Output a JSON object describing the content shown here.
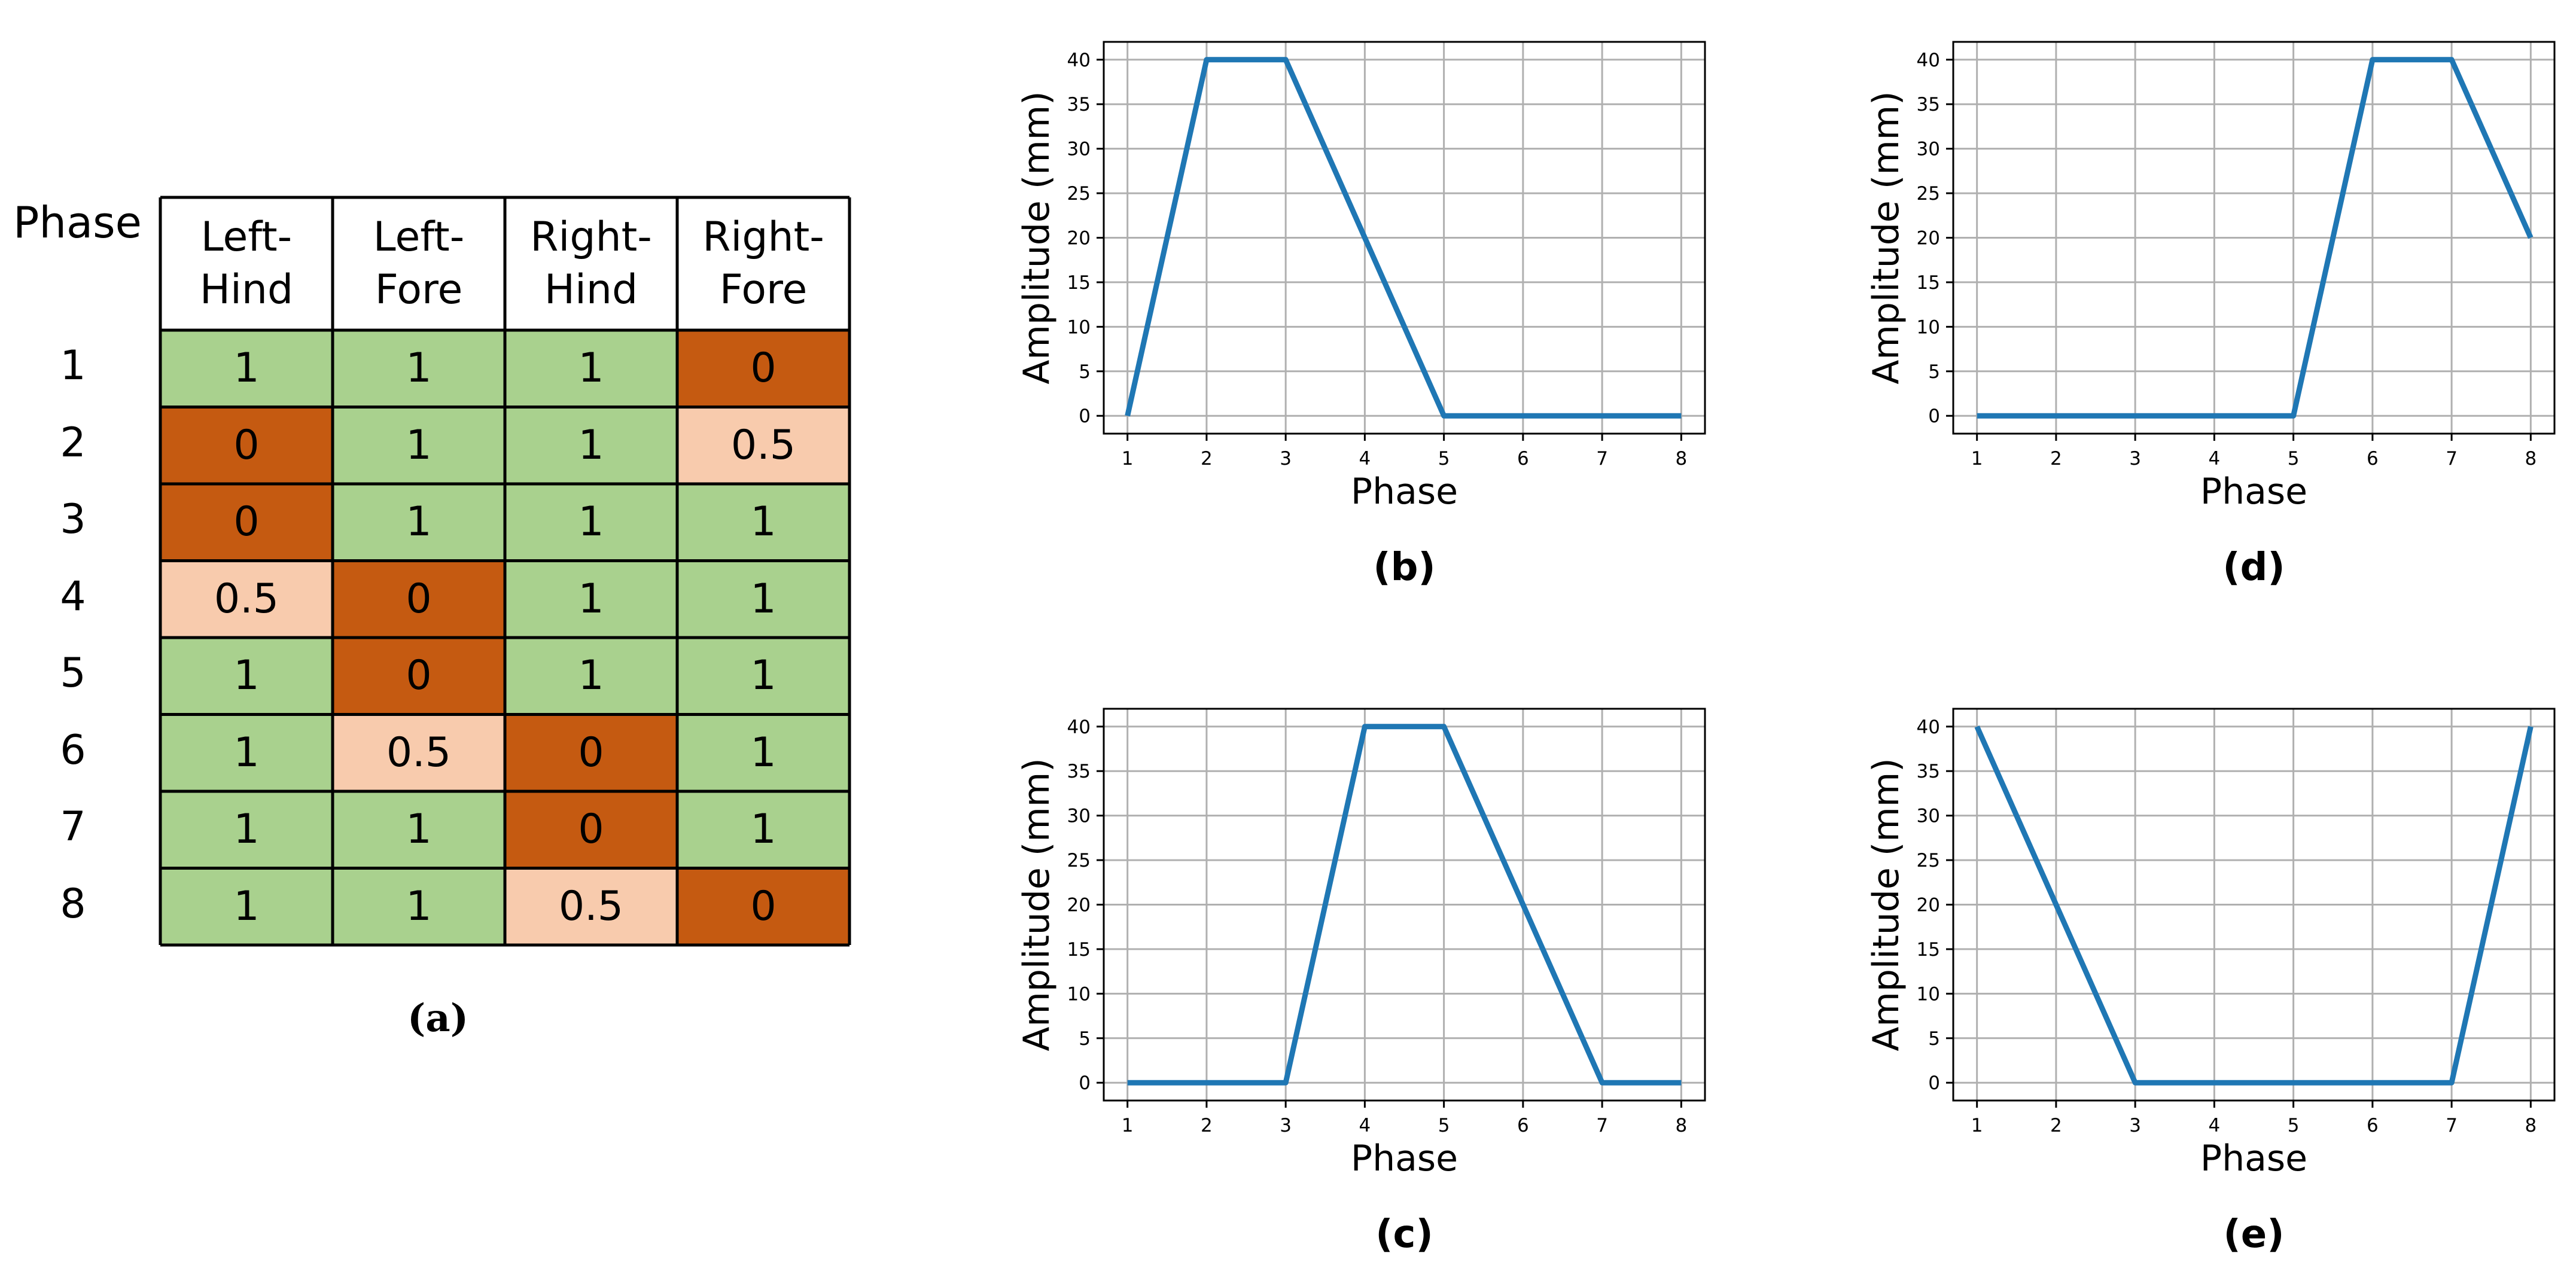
{
  "table": {
    "phase_header": "Phase",
    "columns": [
      "Left-\nHind",
      "Left-\nFore",
      "Right-\nHind",
      "Right-\nFore"
    ],
    "rows": [
      {
        "phase": "1",
        "values": [
          "1",
          "1",
          "1",
          "0"
        ]
      },
      {
        "phase": "2",
        "values": [
          "0",
          "1",
          "1",
          "0.5"
        ]
      },
      {
        "phase": "3",
        "values": [
          "0",
          "1",
          "1",
          "1"
        ]
      },
      {
        "phase": "4",
        "values": [
          "0.5",
          "0",
          "1",
          "1"
        ]
      },
      {
        "phase": "5",
        "values": [
          "1",
          "0",
          "1",
          "1"
        ]
      },
      {
        "phase": "6",
        "values": [
          "1",
          "0.5",
          "0",
          "1"
        ]
      },
      {
        "phase": "7",
        "values": [
          "1",
          "1",
          "0",
          "1"
        ]
      },
      {
        "phase": "8",
        "values": [
          "1",
          "1",
          "0.5",
          "0"
        ]
      }
    ],
    "caption": "(a)",
    "colors": {
      "1": "#a9d18e",
      "0": "#c55a11",
      "0.5": "#f8cbad"
    }
  },
  "chart_data": [
    {
      "type": "line",
      "caption": "(b)",
      "xlabel": "Phase",
      "ylabel": "Amplitude (mm)",
      "x": [
        1,
        2,
        3,
        4,
        5,
        6,
        7,
        8
      ],
      "y": [
        0,
        40,
        40,
        20,
        0,
        0,
        0,
        0
      ],
      "xlim": [
        0.7,
        8.3
      ],
      "ylim": [
        -2,
        42
      ],
      "xticks": [
        1,
        2,
        3,
        4,
        5,
        6,
        7,
        8
      ],
      "yticks": [
        0,
        5,
        10,
        15,
        20,
        25,
        30,
        35,
        40
      ],
      "grid": true,
      "color": "#1f77b4"
    },
    {
      "type": "line",
      "caption": "(d)",
      "xlabel": "Phase",
      "ylabel": "Amplitude (mm)",
      "x": [
        1,
        2,
        3,
        4,
        5,
        6,
        7,
        8
      ],
      "y": [
        0,
        0,
        0,
        0,
        0,
        40,
        40,
        20
      ],
      "xlim": [
        0.7,
        8.3
      ],
      "ylim": [
        -2,
        42
      ],
      "xticks": [
        1,
        2,
        3,
        4,
        5,
        6,
        7,
        8
      ],
      "yticks": [
        0,
        5,
        10,
        15,
        20,
        25,
        30,
        35,
        40
      ],
      "grid": true,
      "color": "#1f77b4"
    },
    {
      "type": "line",
      "caption": "(c)",
      "xlabel": "Phase",
      "ylabel": "Amplitude (mm)",
      "x": [
        1,
        2,
        3,
        4,
        5,
        6,
        7,
        8
      ],
      "y": [
        0,
        0,
        0,
        40,
        40,
        20,
        0,
        0
      ],
      "xlim": [
        0.7,
        8.3
      ],
      "ylim": [
        -2,
        42
      ],
      "xticks": [
        1,
        2,
        3,
        4,
        5,
        6,
        7,
        8
      ],
      "yticks": [
        0,
        5,
        10,
        15,
        20,
        25,
        30,
        35,
        40
      ],
      "grid": true,
      "color": "#1f77b4"
    },
    {
      "type": "line",
      "caption": "(e)",
      "xlabel": "Phase",
      "ylabel": "Amplitude (mm)",
      "x": [
        1,
        2,
        3,
        4,
        5,
        6,
        7,
        8
      ],
      "y": [
        40,
        20,
        0,
        0,
        0,
        0,
        0,
        40
      ],
      "xlim": [
        0.7,
        8.3
      ],
      "ylim": [
        -2,
        42
      ],
      "xticks": [
        1,
        2,
        3,
        4,
        5,
        6,
        7,
        8
      ],
      "yticks": [
        0,
        5,
        10,
        15,
        20,
        25,
        30,
        35,
        40
      ],
      "grid": true,
      "color": "#1f77b4"
    }
  ]
}
